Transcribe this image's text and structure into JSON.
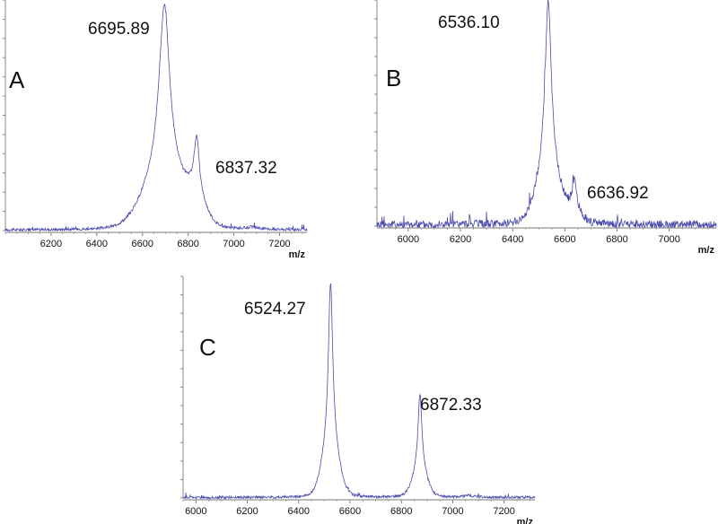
{
  "spectrum_color": "#4b4bb0",
  "chart_data": [
    {
      "type": "line",
      "panel": "A",
      "xlabel": "m/z",
      "xlim": [
        6000,
        7320
      ],
      "xticks": [
        6200,
        6400,
        6600,
        6800,
        7000,
        7200
      ],
      "peaks": [
        {
          "mz": 6695.89,
          "label": "6695.89",
          "rel_intensity": 1.0,
          "width": 28
        },
        {
          "mz": 6837.32,
          "label": "6837.32",
          "rel_intensity": 0.33,
          "width": 14
        },
        {
          "mz": 7080,
          "label": "",
          "rel_intensity": 0.01,
          "width": 20
        }
      ],
      "noise": 0.006
    },
    {
      "type": "line",
      "panel": "B",
      "xlabel": "m/z",
      "xlim": [
        5880,
        7180
      ],
      "xticks": [
        6000,
        6200,
        6400,
        6600,
        6800,
        7000
      ],
      "peaks": [
        {
          "mz": 6536.1,
          "label": "6536.10",
          "rel_intensity": 1.0,
          "width": 14
        },
        {
          "mz": 6636.92,
          "label": "6636.92",
          "rel_intensity": 0.17,
          "width": 10
        }
      ],
      "noise": 0.018
    },
    {
      "type": "line",
      "panel": "C",
      "xlabel": "m/z",
      "xlim": [
        5950,
        7320
      ],
      "xticks": [
        6000,
        6200,
        6400,
        6600,
        6800,
        7000,
        7200
      ],
      "peaks": [
        {
          "mz": 6524.27,
          "label": "6524.27",
          "rel_intensity": 1.0,
          "width": 10
        },
        {
          "mz": 6872.33,
          "label": "6872.33",
          "rel_intensity": 0.48,
          "width": 9
        },
        {
          "mz": 7060,
          "label": "",
          "rel_intensity": 0.01,
          "width": 15
        }
      ],
      "noise": 0.006
    }
  ]
}
